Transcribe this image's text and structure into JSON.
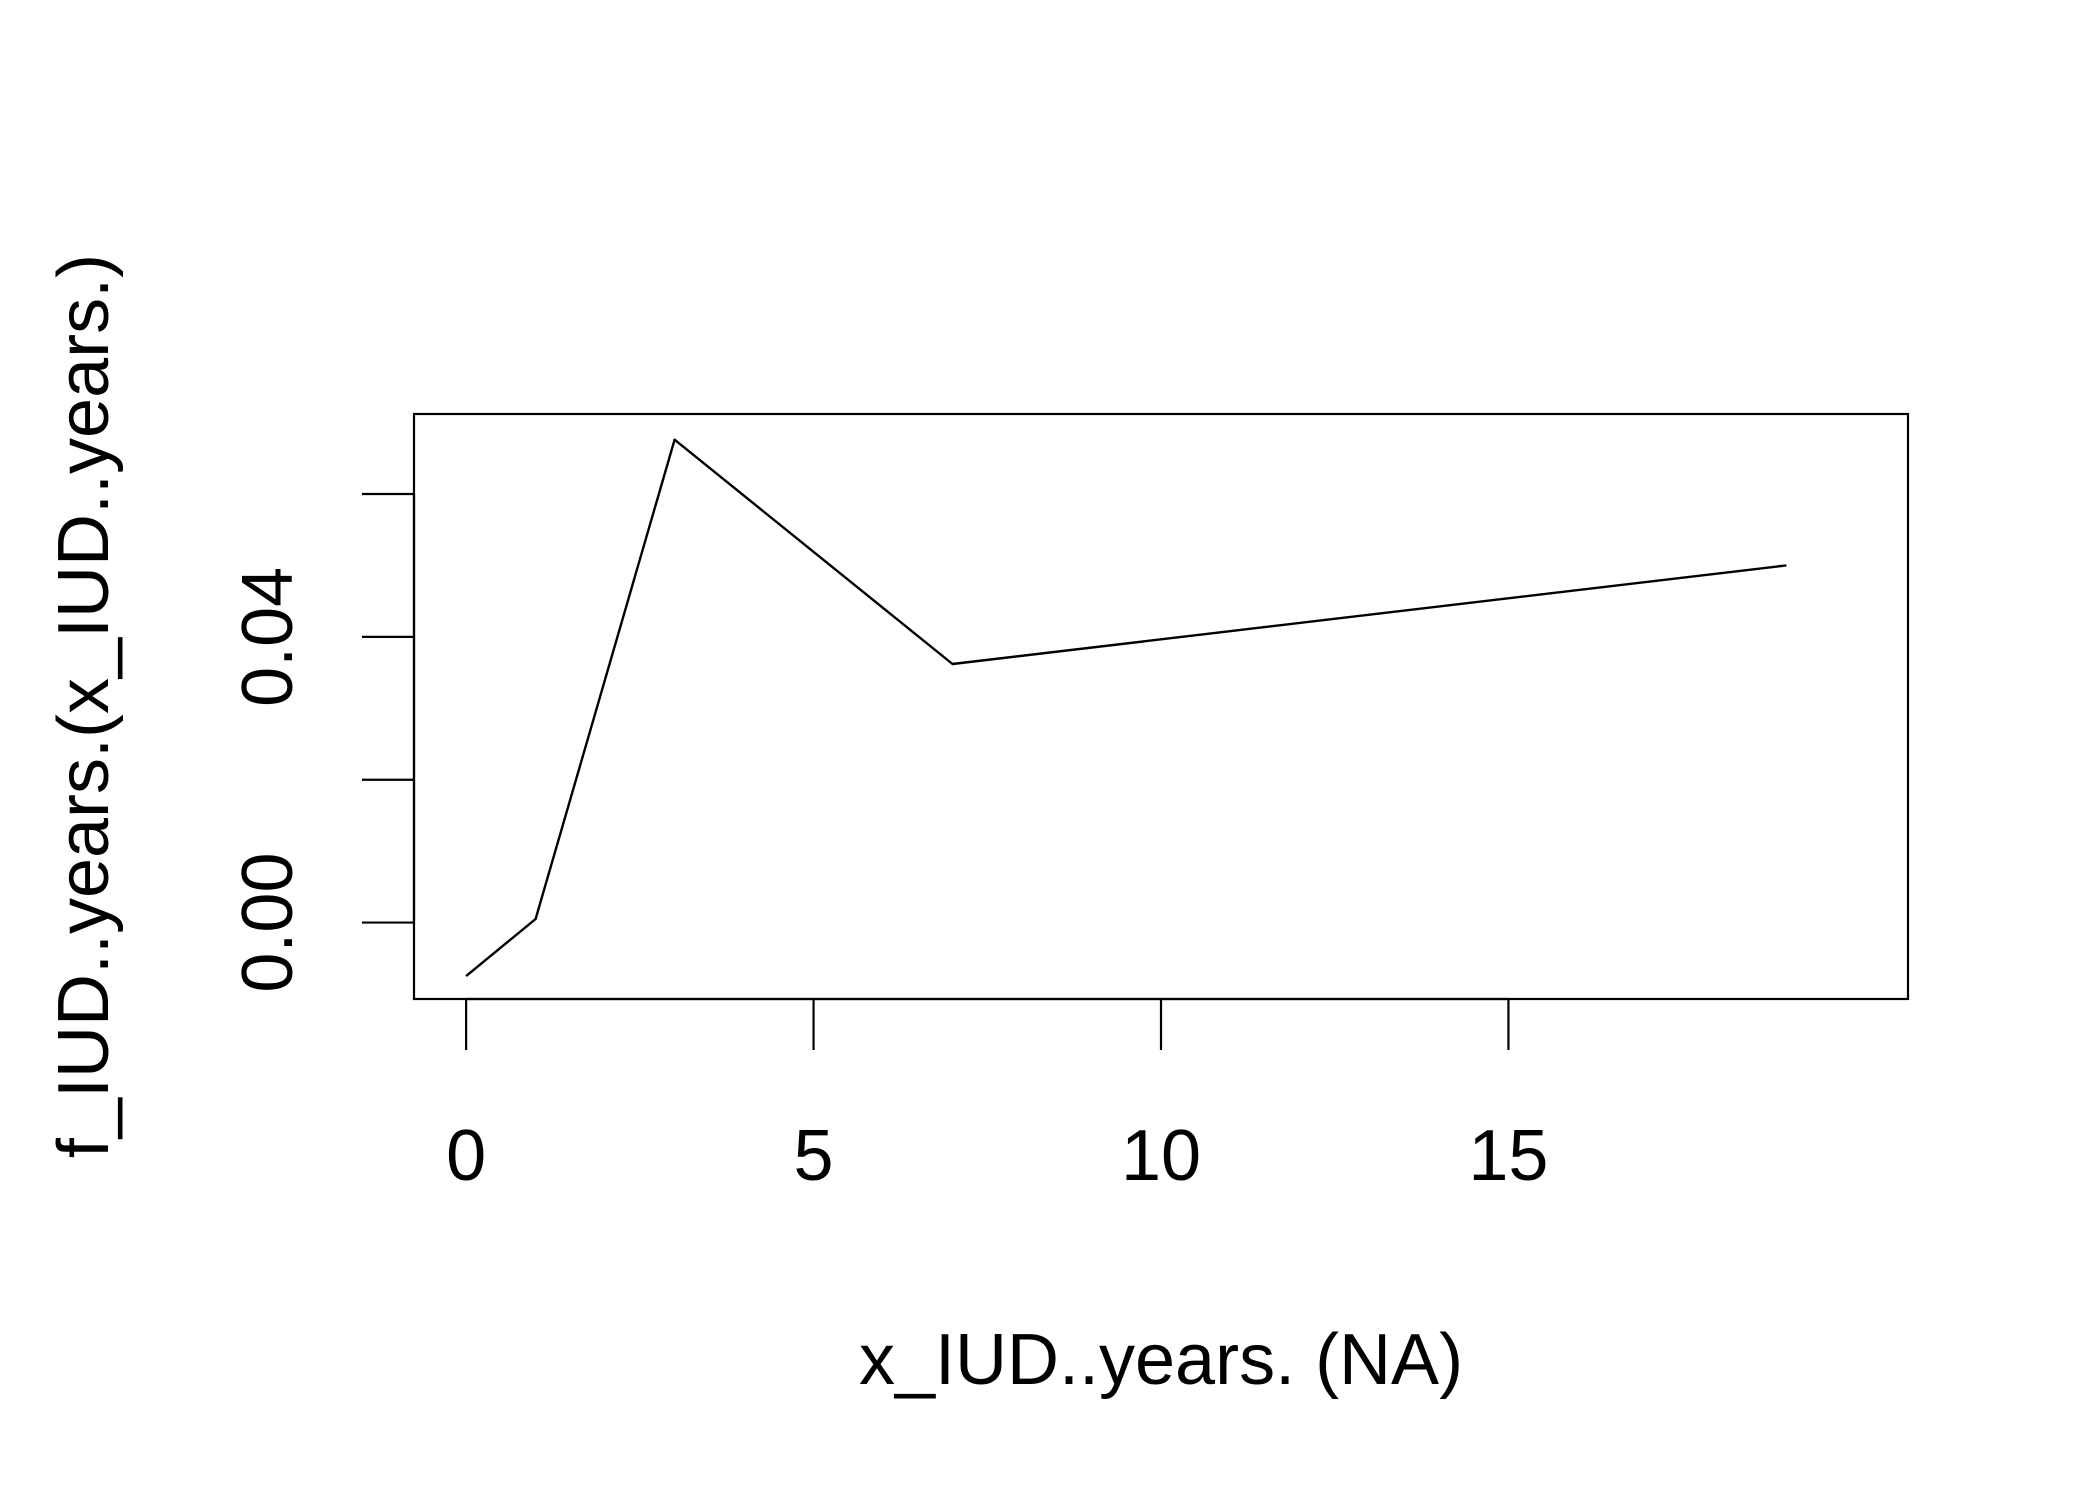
{
  "chart_data": {
    "type": "line",
    "title": "",
    "xlabel": "x_IUD..years. (NA)",
    "ylabel": "f_IUD..years.(x_IUD..years.)",
    "xlim": [
      -0.75,
      20.75
    ],
    "ylim": [
      -0.0107,
      0.0712
    ],
    "x_ticks": [
      0,
      5,
      10,
      15
    ],
    "x_tick_labels": [
      "0",
      "5",
      "10",
      "15"
    ],
    "y_ticks": [
      0.0,
      0.02,
      0.04,
      0.06
    ],
    "y_tick_labels": [
      "0.00",
      "",
      "0.04",
      ""
    ],
    "grid": false,
    "legend": "none",
    "series": [
      {
        "x": [
          0,
          1,
          3,
          7,
          19
        ],
        "y": [
          -0.0075,
          0.0005,
          0.0676,
          0.0362,
          0.05
        ]
      }
    ]
  }
}
